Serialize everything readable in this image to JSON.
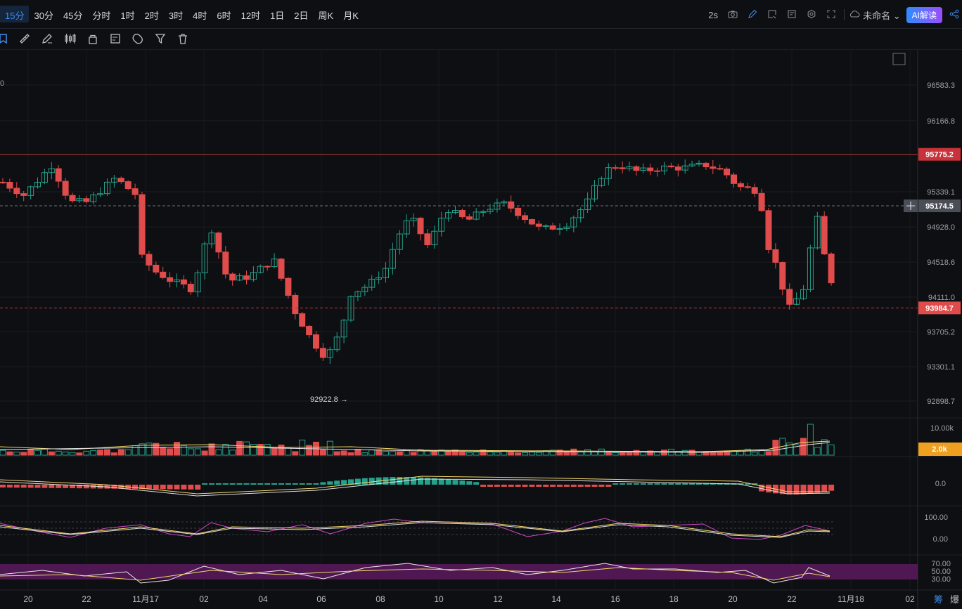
{
  "toolbar": {
    "intervals": [
      "15分",
      "30分",
      "45分",
      "分时",
      "1时",
      "2时",
      "3时",
      "4时",
      "6时",
      "12时",
      "1日",
      "2日",
      "周K",
      "月K"
    ],
    "active_interval": "15分",
    "refresh_rate": "2s",
    "project_name": "未命名",
    "ai_button": "AI解读",
    "icons": [
      "camera-icon",
      "pencil-icon",
      "layout-icon",
      "settings-doc-icon",
      "gear-icon",
      "fullscreen-icon",
      "cloud-icon",
      "share-icon"
    ]
  },
  "drawing_tools": [
    "bookmark-icon",
    "ruler-icon",
    "pen-icon",
    "candles-icon",
    "lock-icon",
    "list-edit-icon",
    "magnet-icon",
    "filter-icon",
    "trash-icon"
  ],
  "bottom_right": {
    "left": "筹",
    "right": "爆"
  },
  "colors": {
    "up": "#24a08b",
    "down": "#e04b4b",
    "bg": "#0e0f12"
  },
  "chart_data": {
    "type": "candlestick",
    "y_ticks": [
      "96583.3",
      "96166.8",
      "95339.1",
      "94928.0",
      "94518.6",
      "94111.0",
      "93705.2",
      "93301.1",
      "92898.7"
    ],
    "price_ref": {
      "top_price": 96583.3,
      "bottom_price": 92898.7
    },
    "x_ticks": [
      "20",
      "22",
      "11月17",
      "02",
      "04",
      "06",
      "08",
      "10",
      "12",
      "14",
      "16",
      "18",
      "20",
      "22",
      "11月18",
      "02"
    ],
    "current_price": "93984.7",
    "high_line": "95775.2",
    "crosshair_price": "95174.5",
    "low_annotation": "92922.8 →",
    "top_left_partial": "0",
    "volume": {
      "top_label": "10.00k",
      "current_tag": "2.0k"
    },
    "macd": {
      "zero_label": "0.0"
    },
    "kdj": {
      "labels": [
        "100.00",
        "0.00"
      ]
    },
    "rsi": {
      "labels": [
        "70.00",
        "50.00",
        "30.00"
      ]
    }
  }
}
